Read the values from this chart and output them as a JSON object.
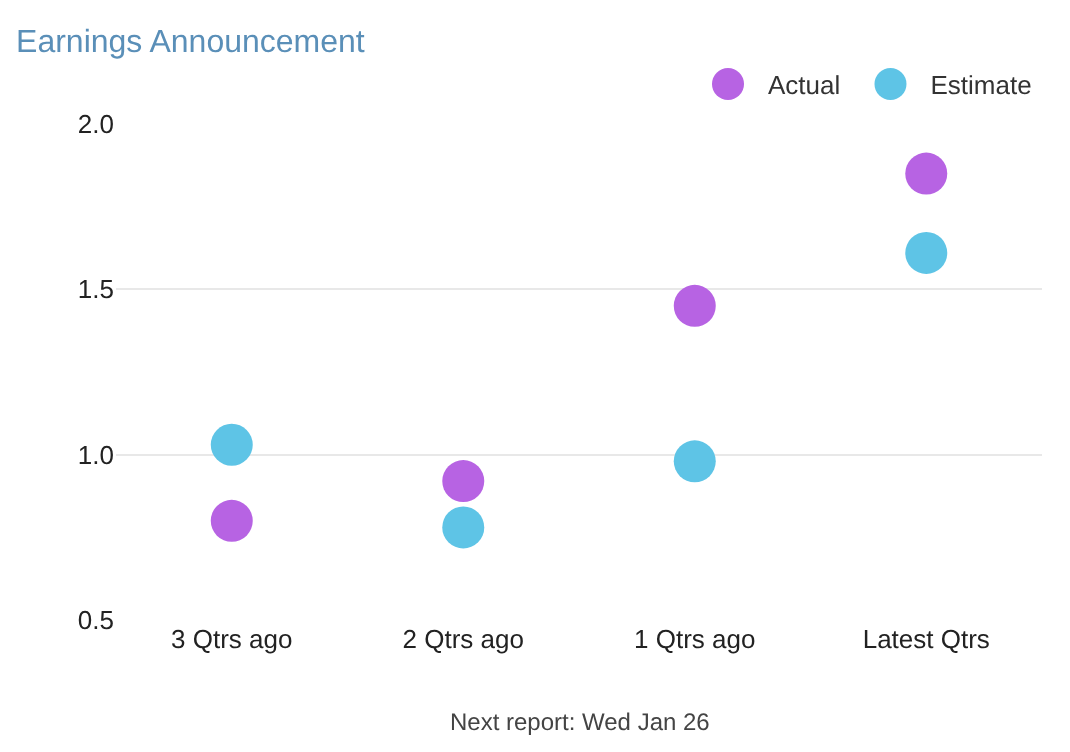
{
  "chart_data": {
    "type": "scatter",
    "title": "Earnings Announcement",
    "categories": [
      "3 Qtrs ago",
      "2 Qtrs ago",
      "1 Qtrs ago",
      "Latest Qtrs"
    ],
    "series": [
      {
        "name": "Actual",
        "color": "#b763e3",
        "values": [
          0.8,
          0.92,
          1.45,
          1.85
        ]
      },
      {
        "name": "Estimate",
        "color": "#5ec4e6",
        "values": [
          1.03,
          0.78,
          0.98,
          1.61
        ]
      }
    ],
    "ylim": [
      0.5,
      2.0
    ],
    "yticks": [
      {
        "value": 0.5,
        "label": "0.5"
      },
      {
        "value": 1.0,
        "label": "1.0"
      },
      {
        "value": 1.5,
        "label": "1.5"
      },
      {
        "value": 2.0,
        "label": "2.0"
      }
    ],
    "grid": "y",
    "legend": "top right",
    "marker": "circle",
    "annotations": [
      "Next report: Wed Jan 26"
    ]
  }
}
